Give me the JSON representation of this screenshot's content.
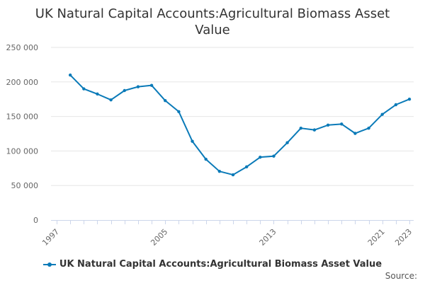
{
  "chart_data": {
    "type": "line",
    "title": "UK Natural Capital Accounts:Agricultural Biomass Asset Value",
    "xlabel": "",
    "ylabel": "",
    "x": [
      1998,
      1999,
      2000,
      2001,
      2002,
      2003,
      2004,
      2005,
      2006,
      2007,
      2008,
      2009,
      2010,
      2011,
      2012,
      2013,
      2014,
      2015,
      2016,
      2017,
      2018,
      2019,
      2020,
      2021,
      2022,
      2023
    ],
    "series": [
      {
        "name": "UK Natural Capital Accounts:Agricultural Biomass Asset Value",
        "color": "#0a7ab8",
        "values": [
          210000,
          190000,
          182500,
          174000,
          187500,
          193000,
          195000,
          173000,
          157000,
          114000,
          88000,
          70500,
          65500,
          77000,
          91000,
          92500,
          112000,
          133000,
          130500,
          137500,
          139000,
          125500,
          133000,
          153000,
          167000,
          175000
        ]
      }
    ],
    "xlim": [
      1997,
      2023
    ],
    "ylim": [
      0,
      250000
    ],
    "x_tick_labels": [
      "1997",
      "2005",
      "2013",
      "2021",
      "2023"
    ],
    "y_tick_labels": [
      "0",
      "50 000",
      "100 000",
      "150 000",
      "200 000",
      "250 000"
    ],
    "grid": true,
    "legend_position": "bottom-center"
  },
  "credits": "Source:"
}
